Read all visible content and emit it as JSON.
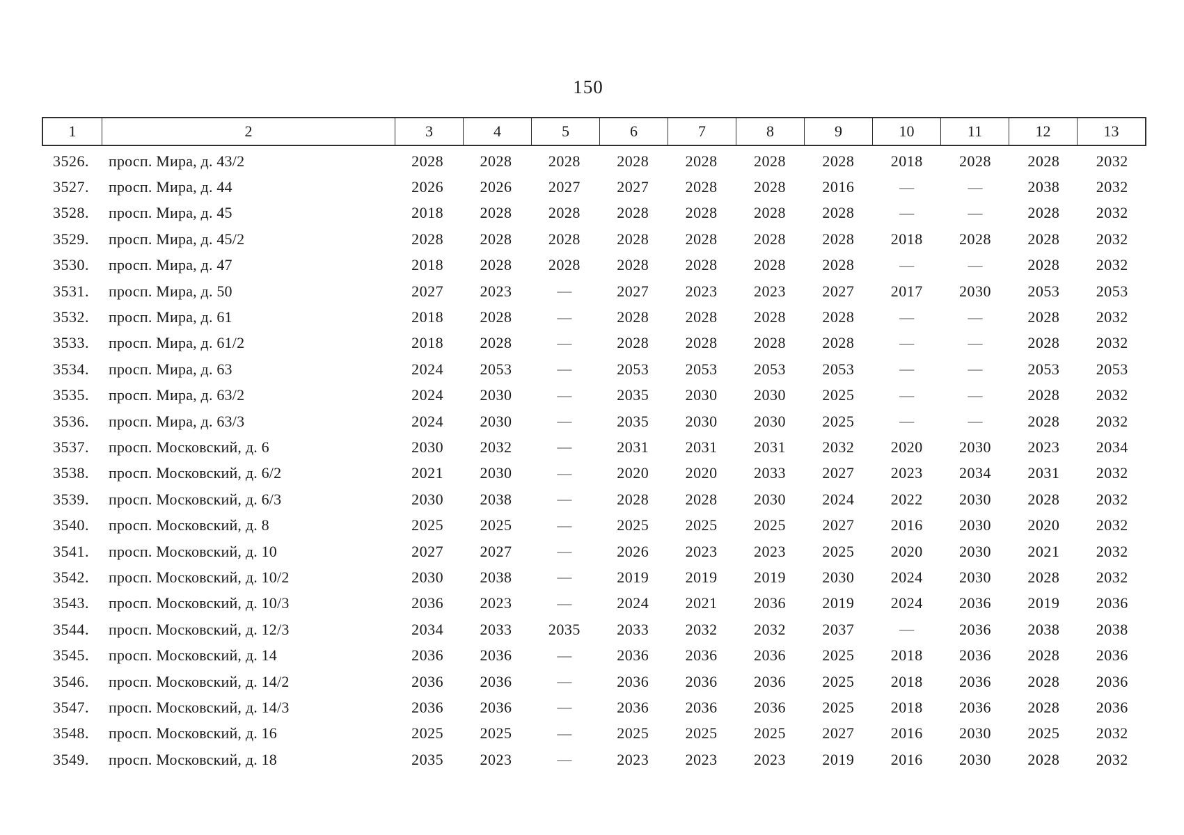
{
  "page": {
    "number": "150"
  },
  "table": {
    "headers": [
      "1",
      "2",
      "3",
      "4",
      "5",
      "6",
      "7",
      "8",
      "9",
      "10",
      "11",
      "12",
      "13"
    ],
    "empty_marker": "—",
    "rows": [
      {
        "num": "3526.",
        "address": "просп. Мира, д. 43/2",
        "values": [
          "2028",
          "2028",
          "2028",
          "2028",
          "2028",
          "2028",
          "2028",
          "2018",
          "2028",
          "2028",
          "2032"
        ]
      },
      {
        "num": "3527.",
        "address": "просп. Мира, д. 44",
        "values": [
          "2026",
          "2026",
          "2027",
          "2027",
          "2028",
          "2028",
          "2016",
          "—",
          "—",
          "2038",
          "2032"
        ]
      },
      {
        "num": "3528.",
        "address": "просп. Мира, д. 45",
        "values": [
          "2018",
          "2028",
          "2028",
          "2028",
          "2028",
          "2028",
          "2028",
          "—",
          "—",
          "2028",
          "2032"
        ]
      },
      {
        "num": "3529.",
        "address": "просп. Мира, д. 45/2",
        "values": [
          "2028",
          "2028",
          "2028",
          "2028",
          "2028",
          "2028",
          "2028",
          "2018",
          "2028",
          "2028",
          "2032"
        ]
      },
      {
        "num": "3530.",
        "address": "просп. Мира, д. 47",
        "values": [
          "2018",
          "2028",
          "2028",
          "2028",
          "2028",
          "2028",
          "2028",
          "—",
          "—",
          "2028",
          "2032"
        ]
      },
      {
        "num": "3531.",
        "address": "просп. Мира, д. 50",
        "values": [
          "2027",
          "2023",
          "—",
          "2027",
          "2023",
          "2023",
          "2027",
          "2017",
          "2030",
          "2053",
          "2053"
        ]
      },
      {
        "num": "3532.",
        "address": "просп. Мира, д. 61",
        "values": [
          "2018",
          "2028",
          "—",
          "2028",
          "2028",
          "2028",
          "2028",
          "—",
          "—",
          "2028",
          "2032"
        ]
      },
      {
        "num": "3533.",
        "address": "просп. Мира, д. 61/2",
        "values": [
          "2018",
          "2028",
          "—",
          "2028",
          "2028",
          "2028",
          "2028",
          "—",
          "—",
          "2028",
          "2032"
        ]
      },
      {
        "num": "3534.",
        "address": "просп. Мира, д. 63",
        "values": [
          "2024",
          "2053",
          "—",
          "2053",
          "2053",
          "2053",
          "2053",
          "—",
          "—",
          "2053",
          "2053"
        ]
      },
      {
        "num": "3535.",
        "address": "просп. Мира, д. 63/2",
        "values": [
          "2024",
          "2030",
          "—",
          "2035",
          "2030",
          "2030",
          "2025",
          "—",
          "—",
          "2028",
          "2032"
        ]
      },
      {
        "num": "3536.",
        "address": "просп. Мира, д. 63/3",
        "values": [
          "2024",
          "2030",
          "—",
          "2035",
          "2030",
          "2030",
          "2025",
          "—",
          "—",
          "2028",
          "2032"
        ]
      },
      {
        "num": "3537.",
        "address": "просп. Московский, д. 6",
        "values": [
          "2030",
          "2032",
          "—",
          "2031",
          "2031",
          "2031",
          "2032",
          "2020",
          "2030",
          "2023",
          "2034"
        ]
      },
      {
        "num": "3538.",
        "address": "просп. Московский, д. 6/2",
        "values": [
          "2021",
          "2030",
          "—",
          "2020",
          "2020",
          "2033",
          "2027",
          "2023",
          "2034",
          "2031",
          "2032"
        ]
      },
      {
        "num": "3539.",
        "address": "просп. Московский, д. 6/3",
        "values": [
          "2030",
          "2038",
          "—",
          "2028",
          "2028",
          "2030",
          "2024",
          "2022",
          "2030",
          "2028",
          "2032"
        ]
      },
      {
        "num": "3540.",
        "address": "просп. Московский, д. 8",
        "values": [
          "2025",
          "2025",
          "—",
          "2025",
          "2025",
          "2025",
          "2027",
          "2016",
          "2030",
          "2020",
          "2032"
        ]
      },
      {
        "num": "3541.",
        "address": "просп. Московский, д. 10",
        "values": [
          "2027",
          "2027",
          "—",
          "2026",
          "2023",
          "2023",
          "2025",
          "2020",
          "2030",
          "2021",
          "2032"
        ]
      },
      {
        "num": "3542.",
        "address": "просп. Московский, д. 10/2",
        "values": [
          "2030",
          "2038",
          "—",
          "2019",
          "2019",
          "2019",
          "2030",
          "2024",
          "2030",
          "2028",
          "2032"
        ]
      },
      {
        "num": "3543.",
        "address": "просп. Московский, д. 10/3",
        "values": [
          "2036",
          "2023",
          "—",
          "2024",
          "2021",
          "2036",
          "2019",
          "2024",
          "2036",
          "2019",
          "2036"
        ]
      },
      {
        "num": "3544.",
        "address": "просп. Московский, д. 12/3",
        "values": [
          "2034",
          "2033",
          "2035",
          "2033",
          "2032",
          "2032",
          "2037",
          "—",
          "2036",
          "2038",
          "2038"
        ]
      },
      {
        "num": "3545.",
        "address": "просп. Московский, д. 14",
        "values": [
          "2036",
          "2036",
          "—",
          "2036",
          "2036",
          "2036",
          "2025",
          "2018",
          "2036",
          "2028",
          "2036"
        ]
      },
      {
        "num": "3546.",
        "address": "просп. Московский, д. 14/2",
        "values": [
          "2036",
          "2036",
          "—",
          "2036",
          "2036",
          "2036",
          "2025",
          "2018",
          "2036",
          "2028",
          "2036"
        ]
      },
      {
        "num": "3547.",
        "address": "просп. Московский, д. 14/3",
        "values": [
          "2036",
          "2036",
          "—",
          "2036",
          "2036",
          "2036",
          "2025",
          "2018",
          "2036",
          "2028",
          "2036"
        ]
      },
      {
        "num": "3548.",
        "address": "просп. Московский, д. 16",
        "values": [
          "2025",
          "2025",
          "—",
          "2025",
          "2025",
          "2025",
          "2027",
          "2016",
          "2030",
          "2025",
          "2032"
        ]
      },
      {
        "num": "3549.",
        "address": "просп. Московский, д. 18",
        "values": [
          "2035",
          "2023",
          "—",
          "2023",
          "2023",
          "2023",
          "2019",
          "2016",
          "2030",
          "2028",
          "2032"
        ]
      }
    ]
  }
}
